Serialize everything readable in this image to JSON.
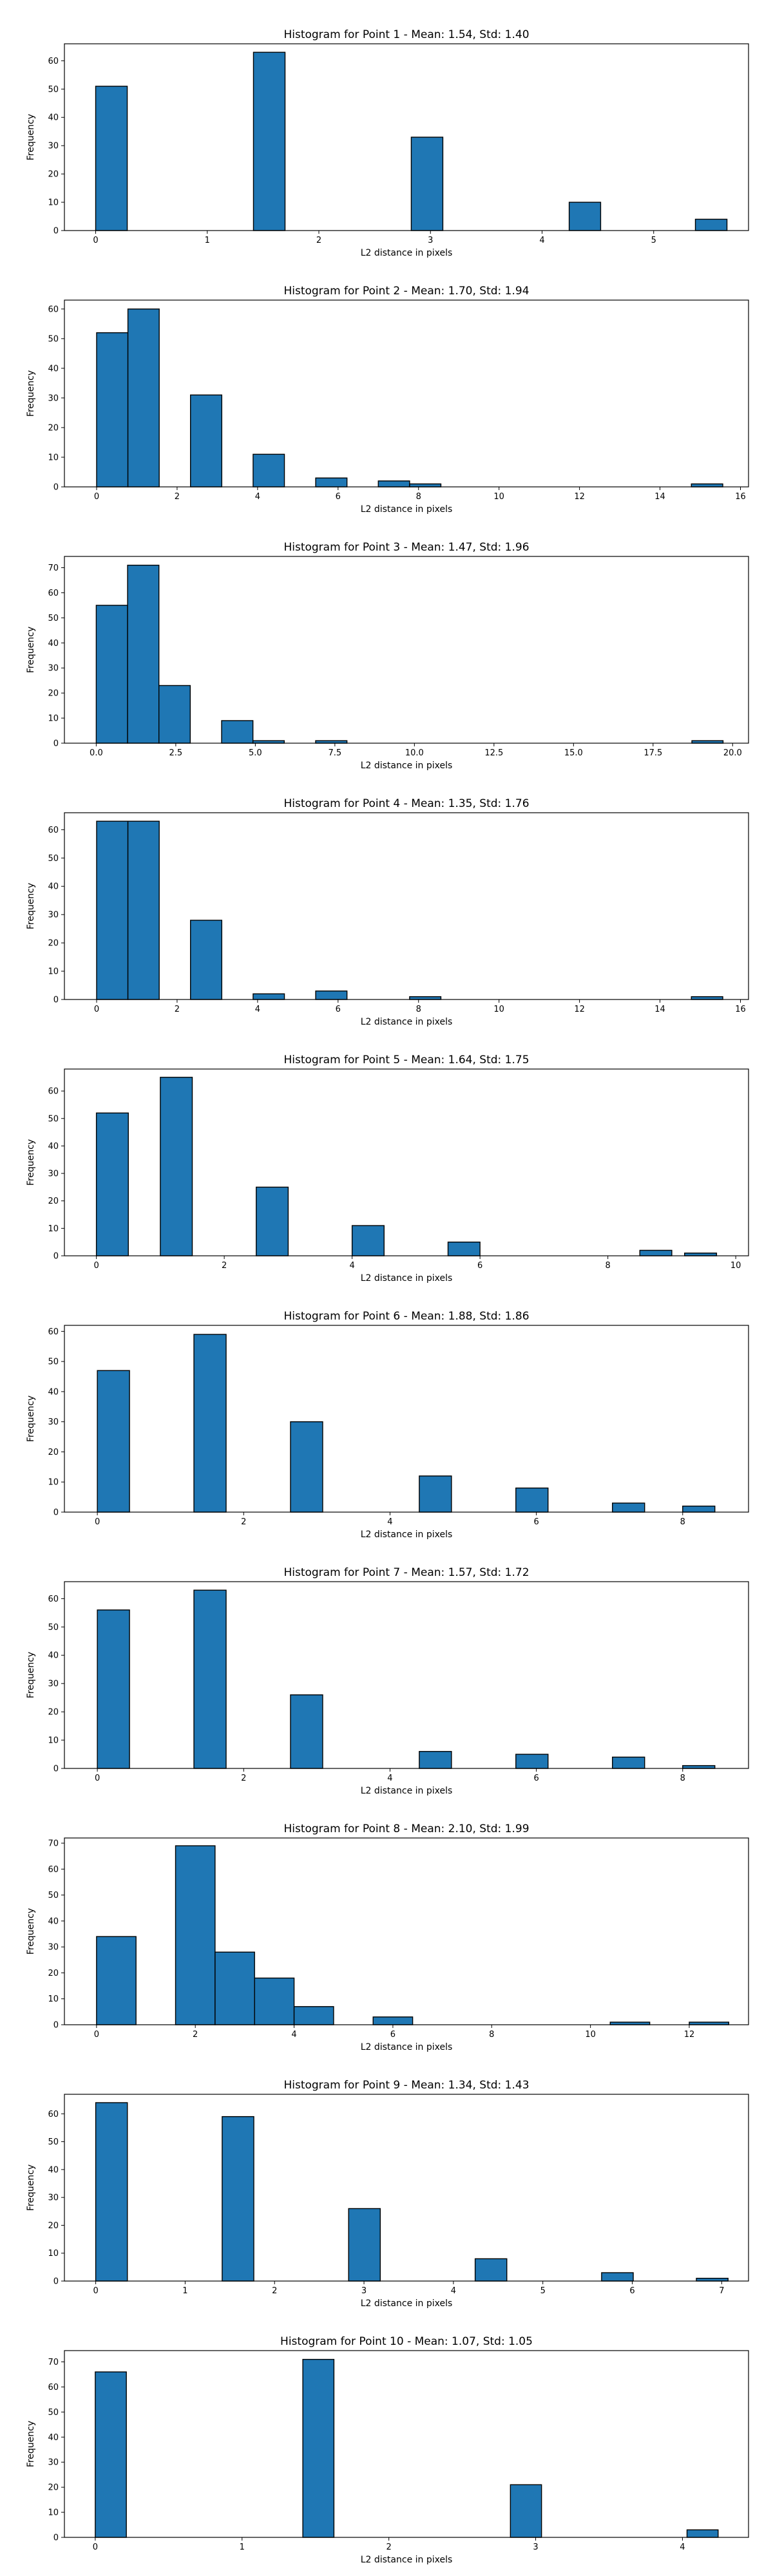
{
  "chart_data": [
    {
      "type": "bar",
      "title": "Histogram for Point 1 - Mean: 1.54, Std: 1.40",
      "xlabel": "L2 distance in pixels",
      "ylabel": "Frequency",
      "xlim": [
        -0.28,
        5.85
      ],
      "ylim": [
        0,
        66
      ],
      "xticks": [
        0,
        1,
        2,
        3,
        4,
        5
      ],
      "xtick_labels": [
        "0",
        "1",
        "2",
        "3",
        "4",
        "5"
      ],
      "yticks": [
        0,
        10,
        20,
        30,
        40,
        50,
        60
      ],
      "ytick_labels": [
        "0",
        "10",
        "20",
        "30",
        "40",
        "50",
        "60"
      ],
      "bin_edges": [
        0,
        0.283,
        1.414,
        1.697,
        2.828,
        3.111,
        4.243,
        4.525,
        5.374,
        5.657
      ],
      "bins": [
        {
          "x0": 0,
          "x1": 0.283,
          "y": 51
        },
        {
          "x0": 1.414,
          "x1": 1.697,
          "y": 63
        },
        {
          "x0": 2.828,
          "x1": 3.111,
          "y": 33
        },
        {
          "x0": 4.243,
          "x1": 4.525,
          "y": 10
        },
        {
          "x0": 5.374,
          "x1": 5.657,
          "y": 4
        }
      ]
    },
    {
      "type": "bar",
      "title": "Histogram for Point 2 - Mean: 1.70, Std: 1.94",
      "xlabel": "L2 distance in pixels",
      "ylabel": "Frequency",
      "xlim": [
        -0.8,
        16.2
      ],
      "ylim": [
        0,
        63
      ],
      "xticks": [
        0,
        2,
        4,
        6,
        8,
        10,
        12,
        14,
        16
      ],
      "xtick_labels": [
        "0",
        "2",
        "4",
        "6",
        "8",
        "10",
        "12",
        "14",
        "16"
      ],
      "yticks": [
        0,
        10,
        20,
        30,
        40,
        50,
        60
      ],
      "ytick_labels": [
        "0",
        "10",
        "20",
        "30",
        "40",
        "50",
        "60"
      ],
      "bins": [
        {
          "x0": 0,
          "x1": 0.778,
          "y": 52
        },
        {
          "x0": 0.778,
          "x1": 1.556,
          "y": 60
        },
        {
          "x0": 2.333,
          "x1": 3.111,
          "y": 31
        },
        {
          "x0": 3.889,
          "x1": 4.667,
          "y": 11
        },
        {
          "x0": 5.444,
          "x1": 6.222,
          "y": 3
        },
        {
          "x0": 7.0,
          "x1": 7.778,
          "y": 2
        },
        {
          "x0": 7.778,
          "x1": 8.556,
          "y": 1
        },
        {
          "x0": 14.78,
          "x1": 15.56,
          "y": 1
        }
      ]
    },
    {
      "type": "bar",
      "title": "Histogram for Point 3 - Mean: 1.47, Std: 1.96",
      "xlabel": "L2 distance in pixels",
      "ylabel": "Frequency",
      "xlim": [
        -1.0,
        20.5
      ],
      "ylim": [
        0,
        74.5
      ],
      "xticks": [
        0,
        2.5,
        5,
        7.5,
        10,
        12.5,
        15,
        17.5,
        20
      ],
      "xtick_labels": [
        "0.0",
        "2.5",
        "5.0",
        "7.5",
        "10.0",
        "12.5",
        "15.0",
        "17.5",
        "20.0"
      ],
      "yticks": [
        0,
        10,
        20,
        30,
        40,
        50,
        60,
        70
      ],
      "ytick_labels": [
        "0",
        "10",
        "20",
        "30",
        "40",
        "50",
        "60",
        "70"
      ],
      "bins": [
        {
          "x0": 0,
          "x1": 0.985,
          "y": 55
        },
        {
          "x0": 0.985,
          "x1": 1.97,
          "y": 71
        },
        {
          "x0": 1.97,
          "x1": 2.955,
          "y": 23
        },
        {
          "x0": 3.94,
          "x1": 4.925,
          "y": 9
        },
        {
          "x0": 4.925,
          "x1": 5.91,
          "y": 1
        },
        {
          "x0": 6.895,
          "x1": 7.88,
          "y": 1
        },
        {
          "x0": 18.72,
          "x1": 19.7,
          "y": 1
        }
      ]
    },
    {
      "type": "bar",
      "title": "Histogram for Point 4 - Mean: 1.35, Std: 1.76",
      "xlabel": "L2 distance in pixels",
      "ylabel": "Frequency",
      "xlim": [
        -0.8,
        16.2
      ],
      "ylim": [
        0,
        66
      ],
      "xticks": [
        0,
        2,
        4,
        6,
        8,
        10,
        12,
        14,
        16
      ],
      "xtick_labels": [
        "0",
        "2",
        "4",
        "6",
        "8",
        "10",
        "12",
        "14",
        "16"
      ],
      "yticks": [
        0,
        10,
        20,
        30,
        40,
        50,
        60
      ],
      "ytick_labels": [
        "0",
        "10",
        "20",
        "30",
        "40",
        "50",
        "60"
      ],
      "bins": [
        {
          "x0": 0,
          "x1": 0.778,
          "y": 63
        },
        {
          "x0": 0.778,
          "x1": 1.556,
          "y": 63
        },
        {
          "x0": 2.333,
          "x1": 3.111,
          "y": 28
        },
        {
          "x0": 3.889,
          "x1": 4.667,
          "y": 2
        },
        {
          "x0": 5.444,
          "x1": 6.222,
          "y": 3
        },
        {
          "x0": 7.778,
          "x1": 8.556,
          "y": 1
        },
        {
          "x0": 14.78,
          "x1": 15.56,
          "y": 1
        }
      ]
    },
    {
      "type": "bar",
      "title": "Histogram for Point 5 - Mean: 1.64, Std: 1.75",
      "xlabel": "L2 distance in pixels",
      "ylabel": "Frequency",
      "xlim": [
        -0.5,
        10.2
      ],
      "ylim": [
        0,
        68
      ],
      "xticks": [
        0,
        2,
        4,
        6,
        8,
        10
      ],
      "xtick_labels": [
        "0",
        "2",
        "4",
        "6",
        "8",
        "10"
      ],
      "yticks": [
        0,
        10,
        20,
        30,
        40,
        50,
        60
      ],
      "ytick_labels": [
        "0",
        "10",
        "20",
        "30",
        "40",
        "50",
        "60"
      ],
      "bins": [
        {
          "x0": 0,
          "x1": 0.5,
          "y": 52
        },
        {
          "x0": 1.0,
          "x1": 1.5,
          "y": 65
        },
        {
          "x0": 2.5,
          "x1": 3.0,
          "y": 25
        },
        {
          "x0": 4.0,
          "x1": 4.5,
          "y": 11
        },
        {
          "x0": 5.5,
          "x1": 6.0,
          "y": 5
        },
        {
          "x0": 8.5,
          "x1": 9.0,
          "y": 2
        },
        {
          "x0": 9.2,
          "x1": 9.7,
          "y": 1
        }
      ]
    },
    {
      "type": "bar",
      "title": "Histogram for Point 6 - Mean: 1.88, Std: 1.86",
      "xlabel": "L2 distance in pixels",
      "ylabel": "Frequency",
      "xlim": [
        -0.45,
        8.9
      ],
      "ylim": [
        0,
        62
      ],
      "xticks": [
        0,
        2,
        4,
        6,
        8
      ],
      "xtick_labels": [
        "0",
        "2",
        "4",
        "6",
        "8"
      ],
      "yticks": [
        0,
        10,
        20,
        30,
        40,
        50,
        60
      ],
      "ytick_labels": [
        "0",
        "10",
        "20",
        "30",
        "40",
        "50",
        "60"
      ],
      "bins": [
        {
          "x0": 0,
          "x1": 0.44,
          "y": 47
        },
        {
          "x0": 1.32,
          "x1": 1.76,
          "y": 59
        },
        {
          "x0": 2.64,
          "x1": 3.08,
          "y": 30
        },
        {
          "x0": 4.4,
          "x1": 4.84,
          "y": 12
        },
        {
          "x0": 5.72,
          "x1": 6.16,
          "y": 8
        },
        {
          "x0": 7.04,
          "x1": 7.48,
          "y": 3
        },
        {
          "x0": 8.0,
          "x1": 8.44,
          "y": 2
        }
      ]
    },
    {
      "type": "bar",
      "title": "Histogram for Point 7 - Mean: 1.57, Std: 1.72",
      "xlabel": "L2 distance in pixels",
      "ylabel": "Frequency",
      "xlim": [
        -0.45,
        8.9
      ],
      "ylim": [
        0,
        66
      ],
      "xticks": [
        0,
        2,
        4,
        6,
        8
      ],
      "xtick_labels": [
        "0",
        "2",
        "4",
        "6",
        "8"
      ],
      "yticks": [
        0,
        10,
        20,
        30,
        40,
        50,
        60
      ],
      "ytick_labels": [
        "0",
        "10",
        "20",
        "30",
        "40",
        "50",
        "60"
      ],
      "bins": [
        {
          "x0": 0,
          "x1": 0.44,
          "y": 56
        },
        {
          "x0": 1.32,
          "x1": 1.76,
          "y": 63
        },
        {
          "x0": 2.64,
          "x1": 3.08,
          "y": 26
        },
        {
          "x0": 4.4,
          "x1": 4.84,
          "y": 6
        },
        {
          "x0": 5.72,
          "x1": 6.16,
          "y": 5
        },
        {
          "x0": 7.04,
          "x1": 7.48,
          "y": 4
        },
        {
          "x0": 8.0,
          "x1": 8.44,
          "y": 1
        }
      ]
    },
    {
      "type": "bar",
      "title": "Histogram for Point 8 - Mean: 2.10, Std: 1.99",
      "xlabel": "L2 distance in pixels",
      "ylabel": "Frequency",
      "xlim": [
        -0.65,
        13.2
      ],
      "ylim": [
        0,
        72
      ],
      "xticks": [
        0,
        2,
        4,
        6,
        8,
        10,
        12
      ],
      "xtick_labels": [
        "0",
        "2",
        "4",
        "6",
        "8",
        "10",
        "12"
      ],
      "yticks": [
        0,
        10,
        20,
        30,
        40,
        50,
        60,
        70
      ],
      "ytick_labels": [
        "0",
        "10",
        "20",
        "30",
        "40",
        "50",
        "60",
        "70"
      ],
      "bins": [
        {
          "x0": 0,
          "x1": 0.8,
          "y": 34
        },
        {
          "x0": 1.6,
          "x1": 2.4,
          "y": 69
        },
        {
          "x0": 2.4,
          "x1": 3.2,
          "y": 28
        },
        {
          "x0": 3.2,
          "x1": 4.0,
          "y": 18
        },
        {
          "x0": 4.0,
          "x1": 4.8,
          "y": 7
        },
        {
          "x0": 5.6,
          "x1": 6.4,
          "y": 3
        },
        {
          "x0": 10.4,
          "x1": 11.2,
          "y": 1
        },
        {
          "x0": 12.0,
          "x1": 12.8,
          "y": 1
        }
      ]
    },
    {
      "type": "bar",
      "title": "Histogram for Point 9 - Mean: 1.34, Std: 1.43",
      "xlabel": "L2 distance in pixels",
      "ylabel": "Frequency",
      "xlim": [
        -0.35,
        7.3
      ],
      "ylim": [
        0,
        67
      ],
      "xticks": [
        0,
        1,
        2,
        3,
        4,
        5,
        6,
        7
      ],
      "xtick_labels": [
        "0",
        "1",
        "2",
        "3",
        "4",
        "5",
        "6",
        "7"
      ],
      "yticks": [
        0,
        10,
        20,
        30,
        40,
        50,
        60
      ],
      "ytick_labels": [
        "0",
        "10",
        "20",
        "30",
        "40",
        "50",
        "60"
      ],
      "bins": [
        {
          "x0": 0,
          "x1": 0.354,
          "y": 64
        },
        {
          "x0": 1.414,
          "x1": 1.768,
          "y": 59
        },
        {
          "x0": 2.828,
          "x1": 3.182,
          "y": 26
        },
        {
          "x0": 4.243,
          "x1": 4.597,
          "y": 8
        },
        {
          "x0": 5.657,
          "x1": 6.011,
          "y": 3
        },
        {
          "x0": 6.717,
          "x1": 7.071,
          "y": 1
        }
      ]
    },
    {
      "type": "bar",
      "title": "Histogram for Point 10 - Mean: 1.07, Std: 1.05",
      "xlabel": "L2 distance in pixels",
      "ylabel": "Frequency",
      "xlim": [
        -0.21,
        4.45
      ],
      "ylim": [
        0,
        74.5
      ],
      "xticks": [
        0,
        1,
        2,
        3,
        4
      ],
      "xtick_labels": [
        "0",
        "1",
        "2",
        "3",
        "4"
      ],
      "yticks": [
        0,
        10,
        20,
        30,
        40,
        50,
        60,
        70
      ],
      "ytick_labels": [
        "0",
        "10",
        "20",
        "30",
        "40",
        "50",
        "60",
        "70"
      ],
      "bins": [
        {
          "x0": 0,
          "x1": 0.212,
          "y": 66
        },
        {
          "x0": 1.414,
          "x1": 1.626,
          "y": 71
        },
        {
          "x0": 2.828,
          "x1": 3.04,
          "y": 21
        },
        {
          "x0": 4.031,
          "x1": 4.243,
          "y": 3
        }
      ]
    }
  ]
}
